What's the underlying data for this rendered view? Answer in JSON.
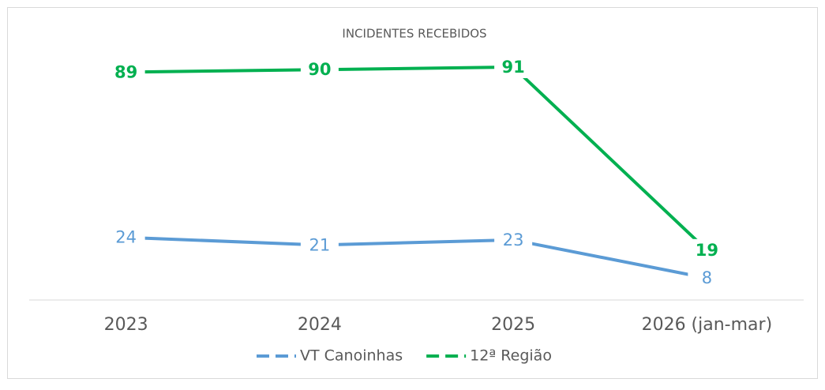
{
  "chart_data": {
    "type": "line",
    "title": "INCIDENTES RECEBIDOS",
    "categories": [
      "2023",
      "2024",
      "2025",
      "2026 (jan-mar)"
    ],
    "series": [
      {
        "name": "VT Canoinhas",
        "color": "#5b9bd5",
        "values": [
          24,
          21,
          23,
          8
        ]
      },
      {
        "name": "12ª Região",
        "color": "#00b050",
        "values": [
          89,
          90,
          91,
          19
        ]
      }
    ],
    "ylim": [
      0,
      100
    ]
  }
}
